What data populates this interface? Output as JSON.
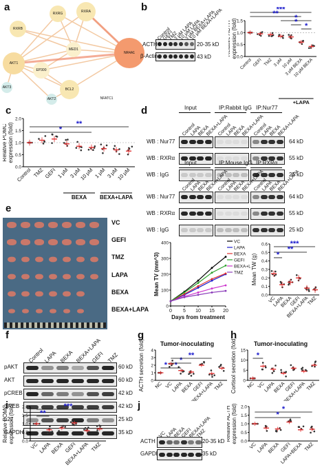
{
  "panels": {
    "a": "a",
    "b": "b",
    "c": "c",
    "d": "d",
    "e": "e",
    "f": "f",
    "g": "g",
    "h": "h",
    "i": "i",
    "j": "j"
  },
  "network": {
    "nodes": [
      "RXRA",
      "RXRG",
      "RXRB",
      "MED1",
      "NR4A1",
      "AKT1",
      "EP300",
      "BCL2",
      "AKT3",
      "AKT2",
      "NFATC1"
    ]
  },
  "panel_b": {
    "lanes": [
      "Control",
      "GEFI",
      "TMZ",
      "3 μM LAPA",
      "10 μM LAPA",
      "3 μM BEXA+LAPA",
      "10 μM BEXA+LAPA"
    ],
    "rows": [
      {
        "label": "ACTH",
        "kd": "20-35 kD"
      },
      {
        "label": "β-Actin",
        "kd": "43 kD"
      }
    ],
    "ylabel": "Relative ACTH expression (fold)",
    "yticks": [
      "0.0",
      "0.5",
      "1.0",
      "1.5"
    ],
    "xticks": [
      "Control",
      "GEFI",
      "TMZ",
      "3 μM",
      "10 μM",
      "3 μM BEXA",
      "10 μM BEXA"
    ],
    "group_label": "+LAPA"
  },
  "panel_c": {
    "ylabel": "Relative POMC expression (fold)",
    "yticks": [
      "0.0",
      "0.5",
      "1.0",
      "1.5",
      "2.0"
    ],
    "xticks": [
      "Control",
      "TMZ",
      "GEFI",
      "1 μM",
      "3 μM",
      "10 μM",
      "1 μM",
      "3 μM",
      "10 μM"
    ],
    "group1": "BEXA",
    "group2": "BEXA+LAPA"
  },
  "panel_d": {
    "top": {
      "headers": [
        "Input",
        "IP:Rabbit IgG",
        "IP:Nur77"
      ],
      "lanes": [
        "Control",
        "LAPA",
        "BEXA",
        "BEXA+LAPA",
        "Control",
        "LAPA",
        "BEXA",
        "BEXA+LAPA",
        "Control",
        "LAPA",
        "BEXA",
        "BEXA+LAPA"
      ],
      "rows": [
        {
          "label": "WB : Nur77",
          "kd": "64 kD"
        },
        {
          "label": "WB : RXRα",
          "kd": "55 kD"
        },
        {
          "label": "WB : IgG",
          "kd": "25 kD"
        }
      ]
    },
    "bottom": {
      "headers": [
        "Input",
        "IP:Mouse IgG",
        "IP:RXRα"
      ],
      "lanes": [
        "Control",
        "LAPA",
        "BEXA",
        "BEXA+LAPA",
        "Control",
        "LAPA",
        "BEXA",
        "BEXA+LAPA",
        "Control",
        "LAPA",
        "BEXA",
        "BEXA+LAPA"
      ],
      "rows": [
        {
          "label": "WB : Nur77",
          "kd": "64 kD"
        },
        {
          "label": "WB : RXRα",
          "kd": "55 kD"
        },
        {
          "label": "WB : IgG",
          "kd": "25 kD"
        }
      ]
    }
  },
  "panel_e": {
    "groups": [
      "VC",
      "GEFI",
      "TMZ",
      "LAPA",
      "BEXA",
      "BEXA+LAPA"
    ],
    "tv_ylabel": "Mean TV (mm^3)",
    "tv_xlabel": "Days from treatment",
    "tv_yticks": [
      "0",
      "100",
      "200",
      "300",
      "400"
    ],
    "tv_xticks": [
      "0",
      "5",
      "10",
      "15",
      "20"
    ],
    "tw_ylabel": "Mean TW (g)",
    "tw_yticks": [
      "0.0",
      "0.1",
      "0.2",
      "0.3",
      "0.4",
      "0.5",
      "0.6"
    ],
    "tw_xticks": [
      "VC",
      "LAPA",
      "BEXA",
      "GEFI",
      "BEXA+LAPA",
      "TMZ"
    ]
  },
  "panel_f": {
    "lanes": [
      "Control",
      "LAPA",
      "BEXA",
      "BEXA+LAPA",
      "GEFI",
      "TMZ"
    ],
    "rows": [
      {
        "label": "pAKT",
        "kd": "60 kD"
      },
      {
        "label": "AKT",
        "kd": "60 kD"
      },
      {
        "label": "pCREB",
        "kd": "42 kD"
      },
      {
        "label": "CREB",
        "kd": "42 kD"
      },
      {
        "label": "p27",
        "kd": "25 kD"
      },
      {
        "label": "GAPDH",
        "kd": "35 kD"
      }
    ]
  },
  "panel_g": {
    "title": "Tumor-inoculating",
    "ylabel": "ACTH secretion (fold)",
    "yticks": [
      "0",
      "1",
      "2",
      "3",
      "4"
    ],
    "xticks": [
      "NC",
      "VC",
      "LAPA",
      "BEXA",
      "GEFI",
      "BEXA+LAPA",
      "TMZ"
    ]
  },
  "panel_h": {
    "title": "Tumor-inoculating",
    "ylabel": "Cortisol secretion (fold)",
    "yticks": [
      "0",
      "5",
      "10",
      "15"
    ],
    "xticks": [
      "NC",
      "VC",
      "LAPA",
      "BEXA",
      "GEFI",
      "BEXA+LAPA",
      "TMZ"
    ]
  },
  "panel_i": {
    "ylabel": "Relative POMC expression (fold)",
    "yticks": [
      "0.0",
      "0.5",
      "1.0",
      "1.5",
      "2.0"
    ],
    "xticks": [
      "VC",
      "LAPA",
      "BEXA",
      "GEFI",
      "BEXA+LAPA",
      "TMZ"
    ]
  },
  "panel_j": {
    "lanes": [
      "VC",
      "LAPA",
      "BEXA",
      "GEFI",
      "BEXA+LAPA",
      "TMZ"
    ],
    "rows": [
      {
        "label": "ACTH",
        "kd": "20-35 kD"
      },
      {
        "label": "GAPDH",
        "kd": "35 kD"
      }
    ],
    "ylabel": "Relative ACTH expression (fold)",
    "yticks": [
      "0.0",
      "0.5",
      "1.0",
      "1.5",
      "2.0"
    ],
    "xticks": [
      "VC",
      "LAPA",
      "BEXA",
      "GEFI",
      "LAPA+BEXA",
      "TMZ"
    ]
  },
  "sig": {
    "one": "*",
    "two": "**",
    "three": "***"
  },
  "colors": {
    "red": "#e03030",
    "blue": "#1a1acc",
    "black": "#000000",
    "green": "#2ca02c",
    "magenta": "#cc33cc",
    "purple": "#8a3ab9"
  },
  "chart_data": [
    {
      "type": "bar",
      "id": "b",
      "categories": [
        "Control",
        "GEFI",
        "TMZ",
        "3 μM LAPA",
        "10 μM LAPA",
        "3 μM BEXA+LAPA",
        "10 μM BEXA+LAPA"
      ],
      "values": [
        1.0,
        0.95,
        0.92,
        0.85,
        0.82,
        0.6,
        0.42
      ],
      "ylim": [
        0,
        1.5
      ]
    },
    {
      "type": "scatter",
      "id": "c",
      "categories": [
        "Control",
        "TMZ",
        "GEFI",
        "BEXA 1 μM",
        "BEXA 3 μM",
        "BEXA 10 μM",
        "BEXA+LAPA 1 μM",
        "BEXA+LAPA 3 μM",
        "BEXA+LAPA 10 μM"
      ],
      "values": [
        1.0,
        1.1,
        1.15,
        0.95,
        0.85,
        0.8,
        0.75,
        0.7,
        0.65
      ],
      "ylim": [
        0,
        2.0
      ]
    },
    {
      "type": "line",
      "id": "e-tv",
      "x": [
        0,
        5,
        10,
        15,
        20
      ],
      "series": [
        {
          "name": "VC",
          "values": [
            30,
            90,
            160,
            240,
            310
          ]
        },
        {
          "name": "LAPA",
          "values": [
            30,
            70,
            115,
            160,
            200
          ]
        },
        {
          "name": "BEXA",
          "values": [
            30,
            75,
            125,
            170,
            205
          ]
        },
        {
          "name": "GEFI",
          "values": [
            30,
            85,
            145,
            210,
            255
          ]
        },
        {
          "name": "BEXA+LAPA",
          "values": [
            30,
            60,
            85,
            110,
            130
          ]
        },
        {
          "name": "TMZ",
          "values": [
            30,
            55,
            70,
            85,
            95
          ]
        }
      ],
      "ylim": [
        0,
        400
      ]
    },
    {
      "type": "scatter",
      "id": "e-tw",
      "categories": [
        "VC",
        "LAPA",
        "BEXA",
        "GEFI",
        "BEXA+LAPA",
        "TMZ"
      ],
      "values": [
        0.25,
        0.12,
        0.15,
        0.2,
        0.08,
        0.06
      ],
      "ylim": [
        0,
        0.6
      ]
    },
    {
      "type": "scatter",
      "id": "g",
      "categories": [
        "NC",
        "VC",
        "LAPA",
        "BEXA",
        "GEFI",
        "BEXA+LAPA",
        "TMZ"
      ],
      "values": [
        1.0,
        2.2,
        1.3,
        1.1,
        2.0,
        0.9,
        1.6
      ],
      "ylim": [
        0,
        4
      ]
    },
    {
      "type": "scatter",
      "id": "h",
      "categories": [
        "NC",
        "VC",
        "LAPA",
        "BEXA",
        "GEFI",
        "BEXA+LAPA",
        "TMZ"
      ],
      "values": [
        1.0,
        7.0,
        5.5,
        3.5,
        6.0,
        4.5,
        7.5
      ],
      "ylim": [
        0,
        15
      ]
    },
    {
      "type": "scatter",
      "id": "i",
      "categories": [
        "VC",
        "LAPA",
        "BEXA",
        "GEFI",
        "BEXA+LAPA",
        "TMZ"
      ],
      "values": [
        1.0,
        0.65,
        0.75,
        1.05,
        0.6,
        0.7
      ],
      "ylim": [
        0,
        2.0
      ]
    },
    {
      "type": "scatter",
      "id": "j",
      "categories": [
        "VC",
        "LAPA",
        "BEXA",
        "GEFI",
        "LAPA+BEXA",
        "TMZ"
      ],
      "values": [
        1.0,
        0.75,
        0.7,
        1.1,
        0.65,
        0.68
      ],
      "ylim": [
        0,
        2.0
      ]
    }
  ]
}
